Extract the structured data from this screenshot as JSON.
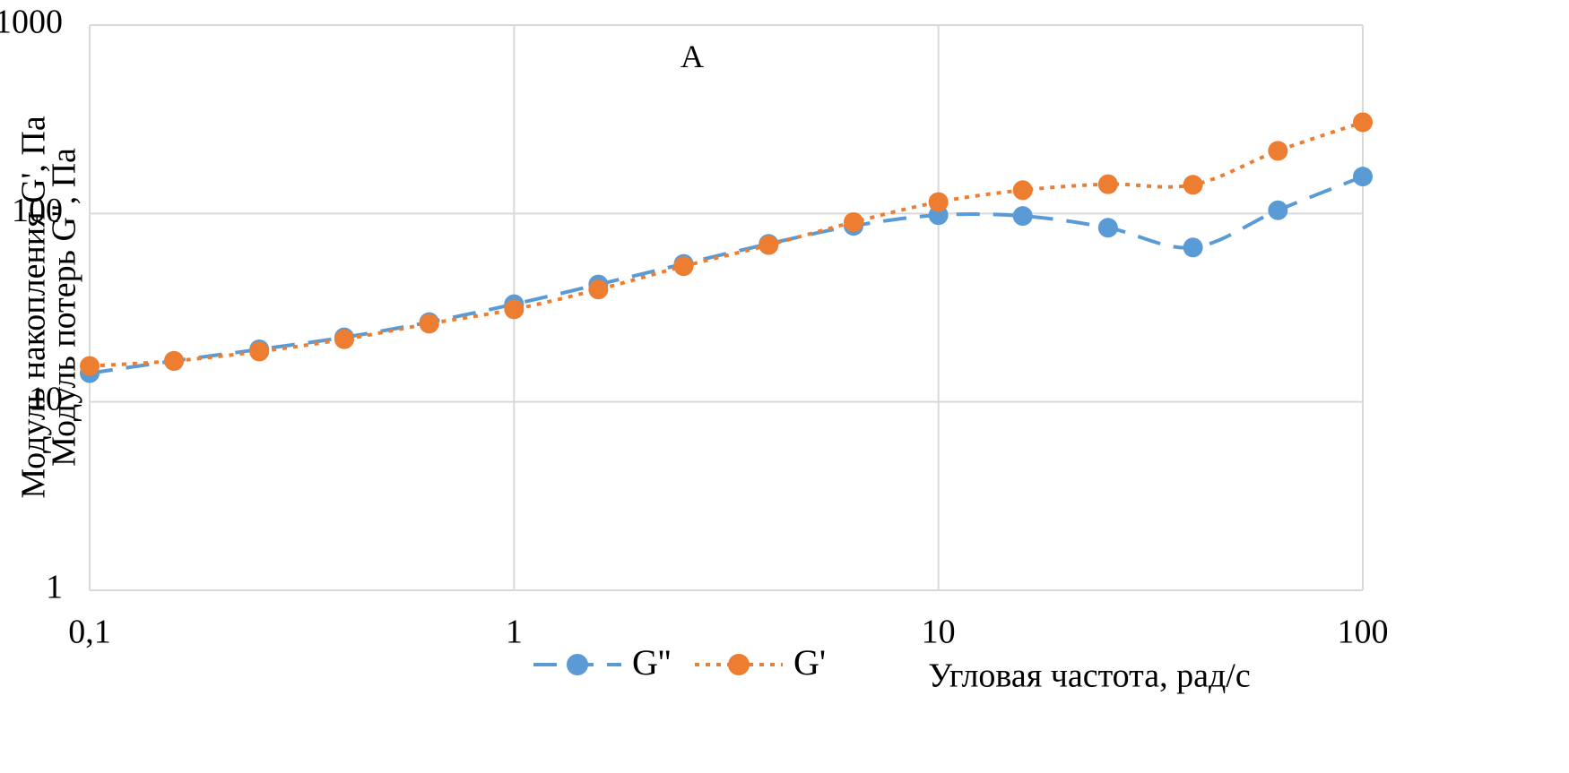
{
  "chart_data": {
    "type": "line",
    "title": "",
    "annotation": "A",
    "xlabel": "Угловая частота, рад/с",
    "ylabel_lines": [
      "Модуль накопления G', Па",
      "Модуль потерь G'', Па"
    ],
    "x_scale": "log",
    "y_scale": "log",
    "xlim": [
      0.1,
      100
    ],
    "ylim": [
      1,
      1000
    ],
    "x_ticks": [
      0.1,
      1,
      10,
      100
    ],
    "x_tick_labels": [
      "0,1",
      "1",
      "10",
      "100"
    ],
    "y_ticks": [
      1,
      10,
      100,
      1000
    ],
    "y_tick_labels": [
      "1",
      "10",
      "100",
      "1000"
    ],
    "grid": true,
    "legend_position": "bottom",
    "x": [
      0.1,
      0.158,
      0.251,
      0.398,
      0.631,
      1,
      1.58,
      2.51,
      3.98,
      6.31,
      10,
      15.8,
      25.1,
      39.8,
      63.1,
      100
    ],
    "series": [
      {
        "name": "G''",
        "color": "#5B9BD5",
        "line_style": "dashed",
        "values": [
          14.2,
          16.5,
          19.0,
          22.0,
          26.5,
          33.0,
          42.0,
          54.0,
          69.0,
          86.0,
          98.0,
          97.0,
          84.0,
          66.0,
          104.0,
          157.0
        ]
      },
      {
        "name": "G'",
        "color": "#ED7D31",
        "line_style": "dotted",
        "values": [
          15.5,
          16.5,
          18.5,
          21.5,
          26.0,
          31.0,
          39.5,
          52.5,
          68.0,
          90.0,
          115.0,
          133.0,
          143.0,
          142.0,
          215.0,
          305.0
        ]
      }
    ]
  }
}
